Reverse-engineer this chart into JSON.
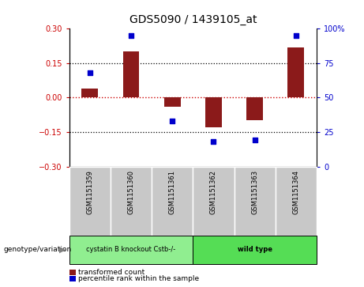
{
  "title": "GDS5090 / 1439105_at",
  "samples": [
    "GSM1151359",
    "GSM1151360",
    "GSM1151361",
    "GSM1151362",
    "GSM1151363",
    "GSM1151364"
  ],
  "transformed_count": [
    0.04,
    0.2,
    -0.04,
    -0.13,
    -0.1,
    0.22
  ],
  "percentile_rank": [
    68,
    95,
    33,
    18,
    19,
    95
  ],
  "ylim_left": [
    -0.3,
    0.3
  ],
  "ylim_right": [
    0,
    100
  ],
  "yticks_left": [
    -0.3,
    -0.15,
    0,
    0.15,
    0.3
  ],
  "yticks_right": [
    0,
    25,
    50,
    75,
    100
  ],
  "bar_color": "#8B1A1A",
  "dot_color": "#0000CC",
  "hline_color": "#CC0000",
  "dotline_color": "black",
  "dotlines": [
    0.15,
    -0.15
  ],
  "groups": [
    {
      "label": "cystatin B knockout Cstb-/-",
      "indices": [
        0,
        1,
        2
      ],
      "color": "#90EE90"
    },
    {
      "label": "wild type",
      "indices": [
        3,
        4,
        5
      ],
      "color": "#55DD55"
    }
  ],
  "group_row_label": "genotype/variation",
  "legend_bar_label": "transformed count",
  "legend_dot_label": "percentile rank within the sample",
  "cell_bg_color": "#C8C8C8",
  "cell_border_color": "#AAAAAA",
  "background_color": "#FFFFFF"
}
